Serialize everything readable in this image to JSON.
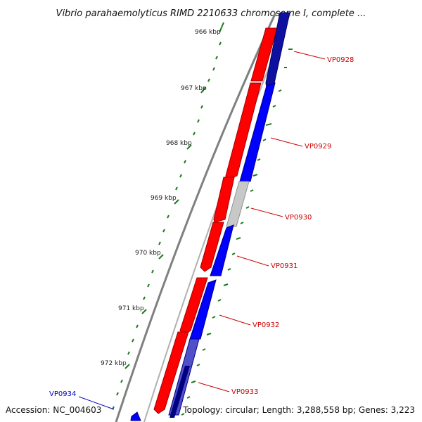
{
  "title": "Vibrio parahaemolyticus RIMD 2210633 chromosome I, complete ...",
  "footer": {
    "accession": "Accession: NC_004603",
    "summary": "Topology: circular; Length: 3,288,558 bp; Genes: 3,223"
  },
  "colors": {
    "forward_gene": "#ff0000",
    "reverse_gene": "#0000ff",
    "unknown_gene": "#c8c8c8",
    "backbone": "#808080",
    "ticks": "#1f7a1f",
    "forward_label": "#cc0000",
    "reverse_label": "#0000cc"
  },
  "scale": {
    "unit": "kbp",
    "ticks": [
      "966 kbp",
      "967 kbp",
      "968 kbp",
      "969 kbp",
      "970 kbp",
      "971 kbp",
      "972 kbp"
    ]
  },
  "genes": [
    {
      "label": "VP0928",
      "strand": "reverse"
    },
    {
      "label": "VP0929",
      "strand": "reverse"
    },
    {
      "label": "VP0930",
      "strand": "unknown"
    },
    {
      "label": "VP0931",
      "strand": "reverse"
    },
    {
      "label": "VP0932",
      "strand": "reverse"
    },
    {
      "label": "VP0933",
      "strand": "reverse"
    },
    {
      "label": "VP0934",
      "strand": "reverse"
    }
  ]
}
